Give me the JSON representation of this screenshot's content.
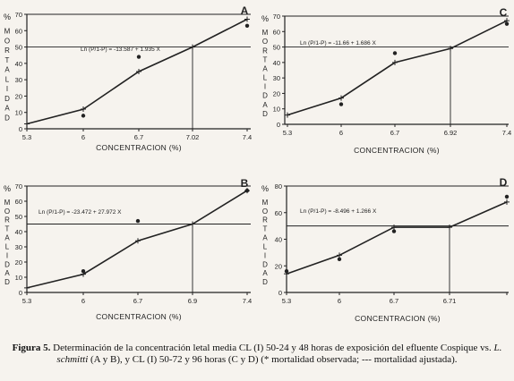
{
  "chart_data": [
    {
      "type": "line",
      "panel_letter": "A",
      "equation": "Ln (P/1-P) = -13.587 + 1.935 X",
      "xlabel": "CONCENTRACION (%)",
      "ylabel": "% MORTALIDAD",
      "x_ticks": [
        5.3,
        6,
        6.7,
        7.02,
        7.4
      ],
      "x_ticklabels": [
        "5.3",
        "6",
        "6.7",
        "7.02",
        "7.4"
      ],
      "y_ticks": [
        0,
        10,
        20,
        30,
        40,
        50,
        60,
        70
      ],
      "ylim": [
        0,
        70
      ],
      "series": [
        {
          "x": [
            5.3,
            6,
            6.7,
            7.02,
            7.4
          ],
          "y": [
            3,
            12,
            35,
            50,
            67
          ]
        },
        {
          "x": [
            6,
            6.7,
            7.4
          ],
          "y": [
            8,
            44,
            63
          ]
        }
      ],
      "lc50_x": 7.02,
      "lc50_y": 50
    },
    {
      "type": "line",
      "panel_letter": "C",
      "equation": "Ln (P/1-P) = -11.66 + 1.686 X",
      "xlabel": "CONCENTRACION (%)",
      "ylabel": "% MORTALIDAD",
      "x_ticks": [
        5.3,
        6,
        6.7,
        6.92,
        7.4
      ],
      "x_ticklabels": [
        "5.3",
        "6",
        "6.7",
        "6.92",
        "7.4"
      ],
      "y_ticks": [
        0,
        10,
        20,
        30,
        40,
        50,
        60,
        70
      ],
      "ylim": [
        0,
        70
      ],
      "series": [
        {
          "x": [
            5.3,
            6,
            6.7,
            6.92,
            7.4
          ],
          "y": [
            6,
            17,
            40,
            49,
            67
          ]
        },
        {
          "x": [
            6,
            6.7,
            7.4
          ],
          "y": [
            13,
            46,
            65
          ]
        }
      ],
      "lc50_x": 6.92,
      "lc50_y": 50
    },
    {
      "type": "line",
      "panel_letter": "B",
      "equation": "Ln (P/1-P) = -23.472 + 27.972 X",
      "xlabel": "CONCENTRACION (%)",
      "ylabel": "% MORTALIDAD",
      "x_ticks": [
        5.3,
        6,
        6.7,
        6.9,
        7.4
      ],
      "x_ticklabels": [
        "5.3",
        "6",
        "6.7",
        "6.9",
        "7.4"
      ],
      "y_ticks": [
        0,
        10,
        20,
        30,
        40,
        50,
        60,
        70
      ],
      "ylim": [
        0,
        70
      ],
      "series": [
        {
          "x": [
            5.3,
            6,
            6.7,
            6.9,
            7.4
          ],
          "y": [
            3,
            12,
            34,
            45,
            67
          ]
        },
        {
          "x": [
            6,
            6.7,
            7.4
          ],
          "y": [
            14,
            47,
            67
          ]
        }
      ],
      "lc50_x": 6.9,
      "lc50_y": 45
    },
    {
      "type": "line",
      "panel_letter": "D",
      "equation": "Ln (P/1-P) = -8.496 + 1.266 X",
      "xlabel": "CONCENTRACION (%)",
      "ylabel": "% MORTALIDAD",
      "x_ticks": [
        5.3,
        6,
        6.7,
        6.71,
        7.4
      ],
      "x_ticklabels": [
        "5.3",
        "6",
        "6.7",
        "6.71",
        ""
      ],
      "y_ticks": [
        0,
        20,
        40,
        60,
        80
      ],
      "ylim": [
        0,
        80
      ],
      "series": [
        {
          "x": [
            5.3,
            6,
            6.7,
            6.71,
            7.4
          ],
          "y": [
            14,
            28,
            49,
            49,
            68
          ]
        },
        {
          "x": [
            5.3,
            6,
            6.7,
            7.4
          ],
          "y": [
            16,
            25,
            46,
            72
          ]
        }
      ],
      "lc50_x": 6.71,
      "lc50_y": 50
    }
  ],
  "caption": {
    "label": "Figura 5.",
    "text_1": " Determinación de la concentración letal media CL (I) 50-24 y 48 horas de exposición del efluente Cospique vs. ",
    "species": "L. schmitti",
    "text_2": " (A y B), y CL (I) 50-72 y 96 horas (C y D) (* mortalidad observada; --- mortalidad ajustada)."
  },
  "colors": {
    "ink": "#222222",
    "paper": "#f6f3ee"
  }
}
